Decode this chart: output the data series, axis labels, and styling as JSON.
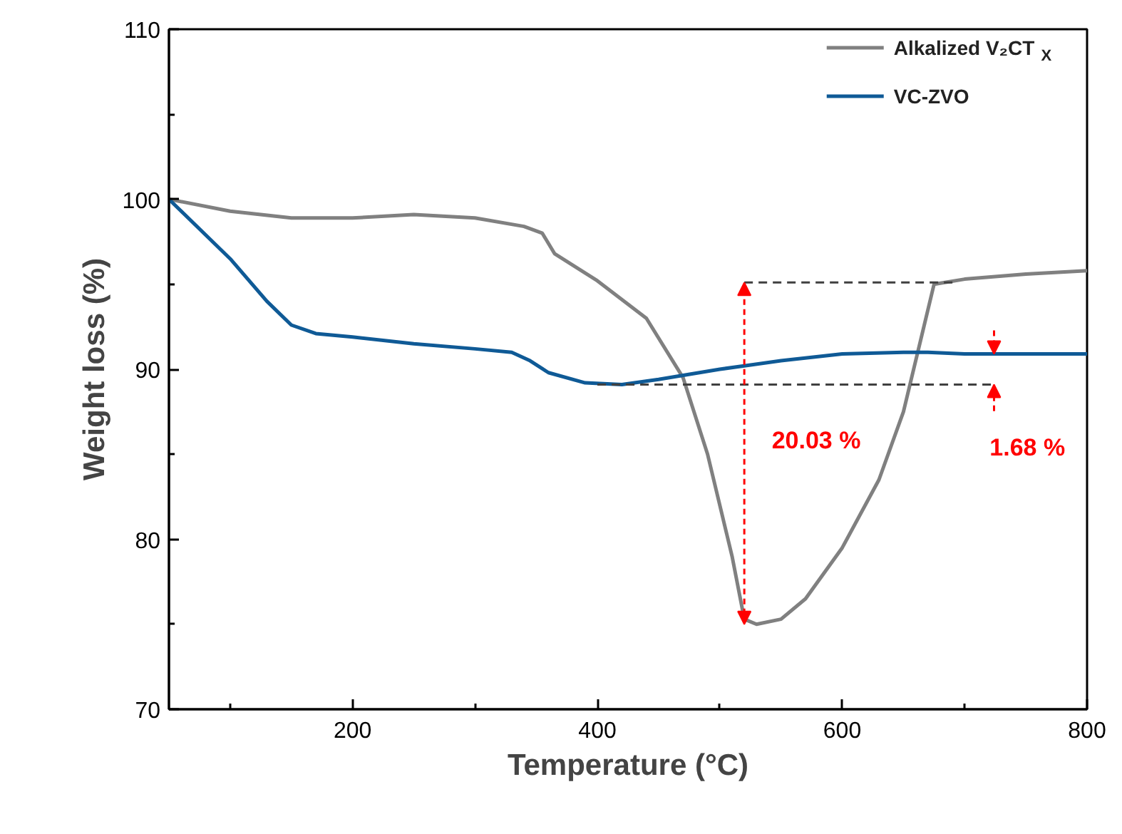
{
  "chart_data": {
    "type": "line",
    "xlabel": "Temperature (°C)",
    "ylabel": "Weight loss (%)",
    "xlim": [
      50,
      800
    ],
    "xticks": [
      200,
      400,
      600,
      800
    ],
    "ylim": [
      70,
      110
    ],
    "yticks": [
      70,
      80,
      90,
      100,
      110
    ],
    "grid": false,
    "legend": "top right",
    "marker": "none",
    "line_style": "solid",
    "series": [
      {
        "name": "Alkalized V₂CT$_{X}$",
        "color": "#808080",
        "x": [
          50,
          100,
          150,
          200,
          250,
          300,
          340,
          355,
          365,
          400,
          440,
          470,
          490,
          510,
          520,
          530,
          550,
          570,
          600,
          630,
          650,
          665,
          675,
          700,
          750,
          800
        ],
        "values": [
          100,
          99.3,
          98.9,
          98.9,
          99.1,
          98.9,
          98.4,
          98.0,
          96.8,
          95.2,
          93.0,
          89.5,
          85,
          79,
          75.3,
          75.0,
          75.3,
          76.5,
          79.5,
          83.5,
          87.5,
          92,
          95,
          95.3,
          95.6,
          95.8
        ]
      },
      {
        "name": "VC-ZVO",
        "color": "#0f5a96",
        "x": [
          50,
          100,
          130,
          150,
          170,
          200,
          250,
          300,
          330,
          345,
          360,
          390,
          420,
          450,
          500,
          550,
          600,
          650,
          670,
          700,
          800
        ],
        "values": [
          100,
          96.5,
          94,
          92.6,
          92.1,
          91.9,
          91.5,
          91.2,
          91.0,
          90.5,
          89.8,
          89.2,
          89.1,
          89.4,
          90.0,
          90.5,
          90.9,
          91.0,
          91.0,
          90.9,
          90.9
        ]
      },
      {
        "color": "#404040",
        "line_style": "dashed",
        "x": [
          520,
          690
        ],
        "values": [
          95.1,
          95.1
        ]
      },
      {
        "color": "#404040",
        "line_style": "dashed",
        "x": [
          400,
          724
        ],
        "values": [
          89.1,
          89.1
        ]
      }
    ],
    "annotations": [
      "20.03 %",
      "1.68 %"
    ]
  }
}
